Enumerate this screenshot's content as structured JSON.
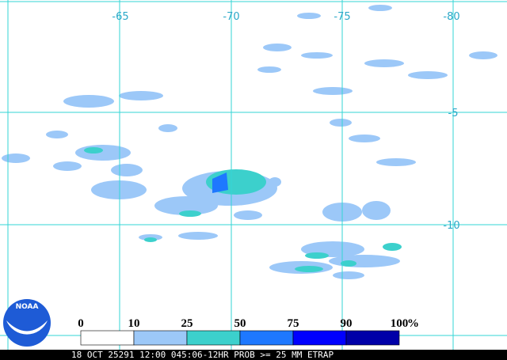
{
  "map": {
    "longitude_labels": [
      "-65",
      "-70",
      "-75",
      "-80"
    ],
    "latitude_labels": [
      "-5",
      "-10"
    ],
    "legend": {
      "labels": [
        "0",
        "10",
        "25",
        "50",
        "75",
        "90",
        "100"
      ],
      "unit": "%",
      "colors": [
        "#ffffff",
        "#9cc8f8",
        "#3cd0cc",
        "#1e78ff",
        "#0000ff",
        "#0000a8"
      ]
    },
    "logo": "NOAA",
    "caption": "18 OCT 25291 12:00 045:06-12HR PROB >= 25 MM ETRAP"
  }
}
